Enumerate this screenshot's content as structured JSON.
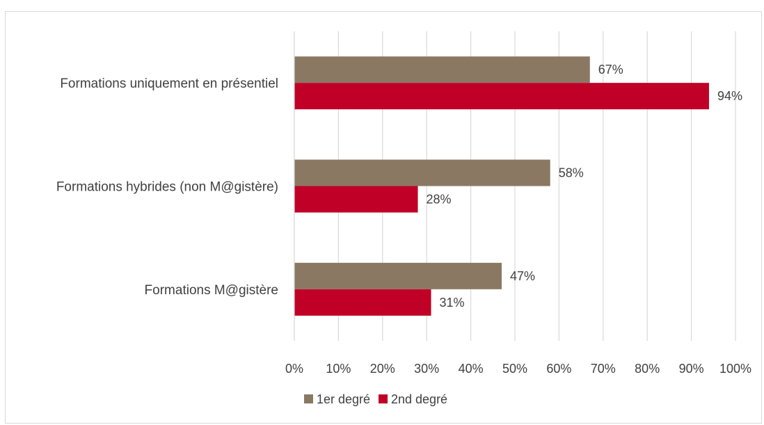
{
  "chart_data": {
    "type": "bar",
    "orientation": "horizontal",
    "categories": [
      "Formations uniquement en présentiel",
      "Formations hybrides (non M@gistère)",
      "Formations M@gistère"
    ],
    "series": [
      {
        "name": "1er degré",
        "values": [
          67,
          58,
          47
        ],
        "labels": [
          "67%",
          "58%",
          "47%"
        ],
        "color": "#8b7863"
      },
      {
        "name": "2nd degré",
        "values": [
          94,
          28,
          31
        ],
        "labels": [
          "94%",
          "28%",
          "31%"
        ],
        "color": "#c00026"
      }
    ],
    "xlim": [
      0,
      100
    ],
    "xticks": [
      0,
      10,
      20,
      30,
      40,
      50,
      60,
      70,
      80,
      90,
      100
    ],
    "xtick_labels": [
      "0%",
      "10%",
      "20%",
      "30%",
      "40%",
      "50%",
      "60%",
      "70%",
      "80%",
      "90%",
      "100%"
    ],
    "grid": true,
    "legend_position": "bottom",
    "title": "",
    "xlabel": "",
    "ylabel": "",
    "gridline_color": "#d9d9d9",
    "text_color": "#404040"
  }
}
